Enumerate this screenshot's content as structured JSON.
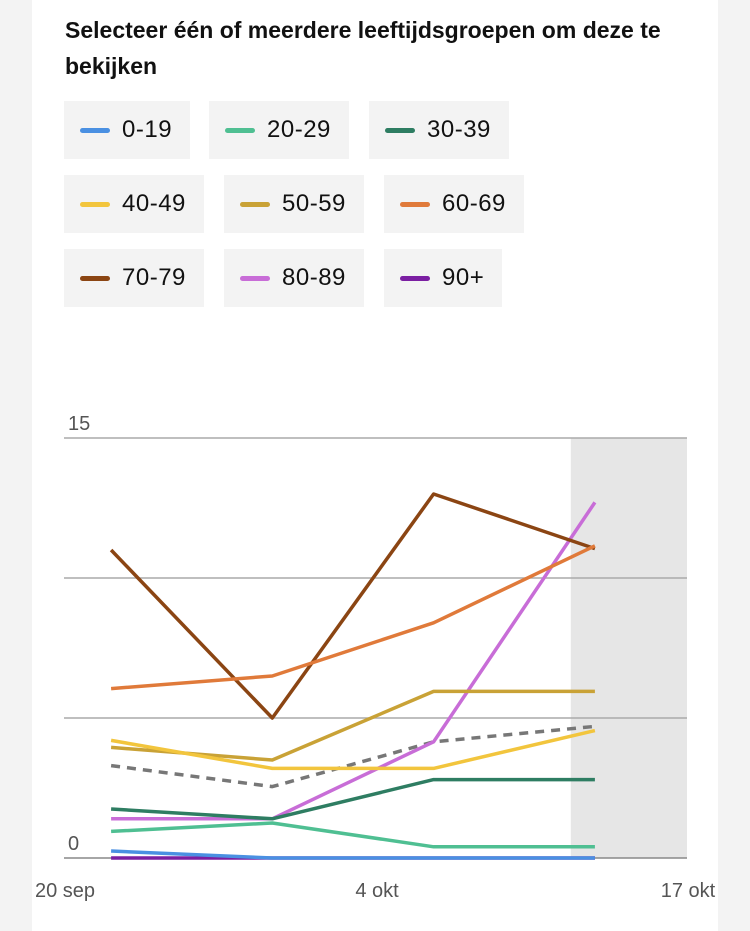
{
  "heading": "Selecteer één of meerdere leeftijdsgroepen om deze te bekijken",
  "legend": [
    {
      "label": "0-19",
      "color": "#4a90e2"
    },
    {
      "label": "20-29",
      "color": "#4fbf92"
    },
    {
      "label": "30-39",
      "color": "#2e7d62"
    },
    {
      "label": "40-49",
      "color": "#f2c53d"
    },
    {
      "label": "50-59",
      "color": "#c9a236"
    },
    {
      "label": "60-69",
      "color": "#e07a3a"
    },
    {
      "label": "70-79",
      "color": "#8b4513"
    },
    {
      "label": "80-89",
      "color": "#c86dd7"
    },
    {
      "label": "90+",
      "color": "#7b1fa2"
    }
  ],
  "chart_data": {
    "type": "line",
    "y_tick_labels": [
      "15",
      "0"
    ],
    "ylim": [
      0,
      15
    ],
    "x_tick_labels": [
      "20 sep",
      "4 okt",
      "17 okt"
    ],
    "x": [
      "2020-09-22",
      "2020-09-29",
      "2020-10-06",
      "2020-10-13"
    ],
    "grid": true,
    "shaded_region": {
      "from": "2020-10-11",
      "to": "2020-10-17",
      "color": "#e6e6e6"
    },
    "series": [
      {
        "name": "0-19",
        "color": "#4a90e2",
        "values": [
          0.25,
          0,
          0,
          0
        ]
      },
      {
        "name": "20-29",
        "color": "#4fbf92",
        "values": [
          0.95,
          1.25,
          0.4,
          0.4
        ]
      },
      {
        "name": "30-39",
        "color": "#2e7d62",
        "values": [
          1.75,
          1.4,
          2.8,
          2.8
        ]
      },
      {
        "name": "40-49",
        "color": "#f2c53d",
        "values": [
          4.2,
          3.2,
          3.2,
          4.55
        ]
      },
      {
        "name": "50-59",
        "color": "#c9a236",
        "values": [
          3.95,
          3.5,
          5.95,
          5.95
        ]
      },
      {
        "name": "60-69",
        "color": "#e07a3a",
        "values": [
          6.05,
          6.5,
          8.4,
          11.15
        ]
      },
      {
        "name": "70-79",
        "color": "#8b4513",
        "values": [
          11.0,
          5.0,
          13.0,
          11.05
        ]
      },
      {
        "name": "80-89",
        "color": "#c86dd7",
        "values": [
          1.4,
          1.4,
          4.15,
          12.7
        ]
      },
      {
        "name": "90+",
        "color": "#7b1fa2",
        "values": [
          0,
          0,
          0,
          0
        ]
      },
      {
        "color": "#777777",
        "dashed": true,
        "values": [
          3.3,
          2.55,
          4.15,
          4.7
        ]
      }
    ]
  }
}
